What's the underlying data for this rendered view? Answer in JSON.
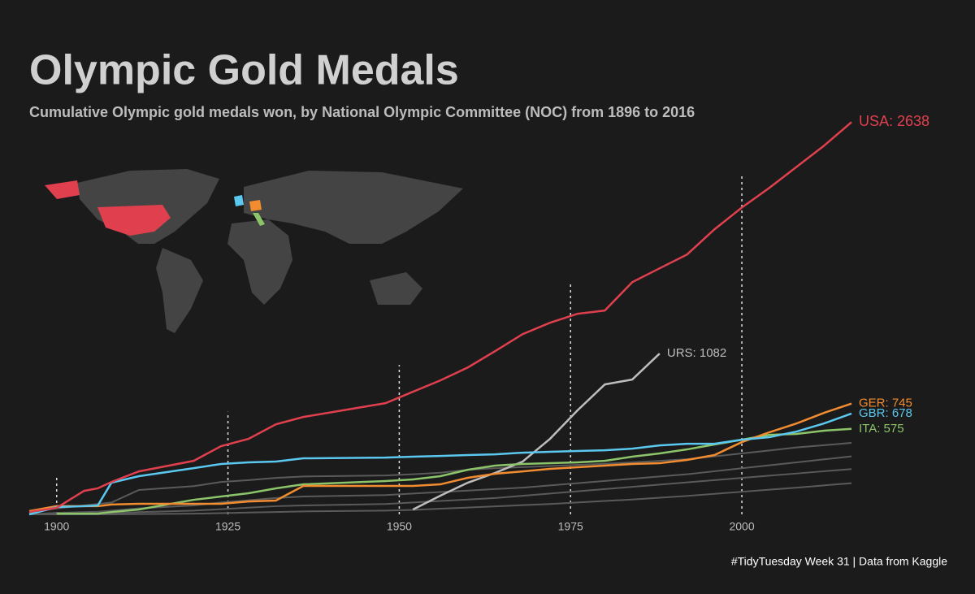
{
  "chart_data": {
    "type": "line",
    "title": "Olympic Gold Medals",
    "subtitle": "Cumulative Olympic gold medals won, by National Olympic Committee (NOC) from 1896 to 2016",
    "caption": "#TidyTuesday Week 31 | Data from Kaggle",
    "x": [
      1896,
      1900,
      1904,
      1906,
      1908,
      1912,
      1920,
      1924,
      1928,
      1932,
      1936,
      1948,
      1952,
      1956,
      1960,
      1964,
      1968,
      1972,
      1976,
      1980,
      1984,
      1988,
      1992,
      1996,
      2000,
      2004,
      2008,
      2012,
      2016
    ],
    "xlim": [
      1896,
      2016
    ],
    "xticks": [
      1900,
      1925,
      1950,
      1975,
      2000
    ],
    "ylim": [
      0,
      2700
    ],
    "grid": true,
    "series": [
      {
        "color": "#5a5a5a",
        "values": [
          10,
          40,
          60,
          70,
          80,
          164,
          190,
          218,
          230,
          245,
          255,
          262,
          270,
          280,
          300,
          310,
          318,
          325,
          333,
          340,
          350,
          360,
          371,
          390,
          410,
          430,
          450,
          465,
          481
        ]
      },
      {
        "color": "#5a5a5a",
        "values": [
          0,
          10,
          15,
          18,
          25,
          40,
          60,
          80,
          95,
          110,
          120,
          130,
          140,
          150,
          160,
          170,
          180,
          195,
          210,
          225,
          240,
          255,
          270,
          290,
          310,
          330,
          350,
          370,
          390
        ]
      },
      {
        "color": "#5a5a5a",
        "values": [
          0,
          0,
          5,
          5,
          8,
          15,
          25,
          35,
          45,
          55,
          60,
          70,
          80,
          90,
          100,
          110,
          125,
          140,
          155,
          170,
          185,
          200,
          215,
          230,
          245,
          260,
          275,
          290,
          305
        ]
      },
      {
        "color": "#5a5a5a",
        "values": [
          0,
          0,
          0,
          0,
          0,
          2,
          5,
          8,
          12,
          16,
          20,
          25,
          30,
          38,
          46,
          54,
          62,
          70,
          80,
          90,
          100,
          112,
          124,
          138,
          152,
          166,
          180,
          195,
          210
        ]
      },
      {
        "name": "URS",
        "end_label": "URS: 1082",
        "color": "#bdbdbd",
        "values": [
          null,
          null,
          null,
          null,
          null,
          null,
          null,
          null,
          null,
          null,
          null,
          null,
          33,
          126,
          213,
          279,
          355,
          508,
          699,
          874,
          907,
          1082,
          null,
          null,
          null,
          null,
          null,
          null,
          null
        ]
      },
      {
        "name": "ITA",
        "end_label": "ITA: 575",
        "color": "#8cc46a",
        "values": [
          null,
          5,
          5,
          5,
          16,
          33,
          98,
          120,
          142,
          175,
          202,
          224,
          235,
          257,
          300,
          328,
          339,
          344,
          350,
          360,
          388,
          410,
          437,
          470,
          502,
          535,
          541,
          563,
          575
        ]
      },
      {
        "name": "GER",
        "end_label": "GER: 745",
        "color": "#f28c30",
        "values": [
          22,
          55,
          55,
          55,
          66,
          71,
          71,
          71,
          87,
          93,
          191,
          191,
          191,
          202,
          246,
          273,
          289,
          306,
          317,
          328,
          339,
          344,
          366,
          399,
          486,
          552,
          612,
          683,
          745
        ]
      },
      {
        "name": "GBR",
        "end_label": "GBR: 678",
        "color": "#5bc8f0",
        "values": [
          0,
          49,
          55,
          60,
          213,
          257,
          311,
          339,
          350,
          355,
          377,
          382,
          388,
          393,
          399,
          404,
          415,
          421,
          426,
          431,
          442,
          464,
          475,
          475,
          502,
          519,
          557,
          612,
          678
        ]
      },
      {
        "name": "USA",
        "end_label": "USA: 2638",
        "color": "#e0404e",
        "values": [
          16,
          44,
          158,
          175,
          218,
          289,
          360,
          459,
          508,
          606,
          655,
          748,
          825,
          901,
          988,
          1098,
          1212,
          1289,
          1349,
          1371,
          1562,
          1655,
          1748,
          1917,
          2064,
          2196,
          2338,
          2480,
          2638
        ]
      }
    ]
  }
}
